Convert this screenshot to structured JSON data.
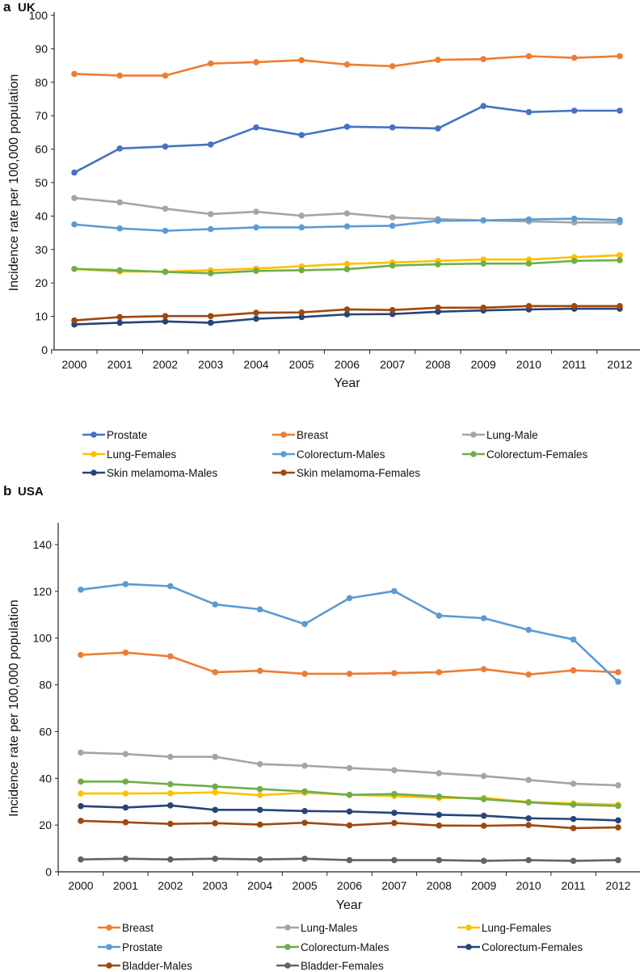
{
  "chart_data": [
    {
      "type": "line",
      "panel_letter": "a",
      "title": "UK",
      "xlabel": "Year",
      "ylabel": "Incidence rate per 100,000 population",
      "ylim": [
        0,
        100
      ],
      "yticks": [
        0,
        10,
        20,
        30,
        40,
        50,
        60,
        70,
        80,
        90,
        100
      ],
      "x": [
        "2000",
        "2001",
        "2002",
        "2003",
        "2004",
        "2005",
        "2006",
        "2007",
        "2008",
        "2009",
        "2010",
        "2011",
        "2012"
      ],
      "grid": false,
      "legend_position": "bottom",
      "series": [
        {
          "name": "Prostate",
          "color": "#4472C4",
          "values": [
            53,
            60.2,
            60.8,
            61.4,
            66.5,
            64.2,
            66.7,
            66.5,
            66.2,
            72.9,
            71.1,
            71.5,
            71.5
          ]
        },
        {
          "name": "Breast",
          "color": "#ED7D31",
          "values": [
            82.5,
            82,
            82,
            85.6,
            86,
            86.6,
            85.3,
            84.8,
            86.7,
            86.9,
            87.8,
            87.3,
            87.8
          ]
        },
        {
          "name": "Lung-Male",
          "color": "#A5A5A5",
          "values": [
            45.4,
            44.1,
            42.2,
            40.6,
            41.3,
            40.1,
            40.8,
            39.6,
            39.1,
            38.7,
            38.4,
            38.1,
            38.1
          ]
        },
        {
          "name": "Lung-Females",
          "color": "#FFC000",
          "values": [
            24.2,
            23.4,
            23.4,
            23.8,
            24.3,
            25,
            25.7,
            26.1,
            26.6,
            27,
            27,
            27.7,
            28.3
          ]
        },
        {
          "name": "Colorectum-Males",
          "color": "#5B9BD5",
          "values": [
            37.5,
            36.3,
            35.6,
            36.1,
            36.6,
            36.6,
            36.9,
            37.1,
            38.6,
            38.7,
            39,
            39.2,
            38.8
          ]
        },
        {
          "name": "Colorectum-Females",
          "color": "#70AD47",
          "values": [
            24.2,
            23.8,
            23.3,
            22.9,
            23.6,
            23.8,
            24.1,
            25.2,
            25.6,
            25.8,
            25.8,
            26.6,
            26.8
          ]
        },
        {
          "name": "Skin melamoma-Males",
          "color": "#264478",
          "values": [
            7.6,
            8.1,
            8.5,
            8.1,
            9.3,
            9.8,
            10.6,
            10.7,
            11.4,
            11.8,
            12.1,
            12.3,
            12.3
          ]
        },
        {
          "name": "Skin melamoma-Females",
          "color": "#9E480E",
          "values": [
            8.8,
            9.8,
            10.1,
            10.1,
            11.1,
            11.2,
            12.1,
            11.9,
            12.6,
            12.6,
            13.1,
            13.1,
            13.1
          ]
        }
      ]
    },
    {
      "type": "line",
      "panel_letter": "b",
      "title": "USA",
      "xlabel": "Year",
      "ylabel": "Incidence rate per 100,000 population",
      "ylim": [
        0,
        140
      ],
      "yticks": [
        0,
        20,
        40,
        60,
        80,
        100,
        120,
        140
      ],
      "x": [
        "2000",
        "2001",
        "2002",
        "2003",
        "2004",
        "2005",
        "2006",
        "2007",
        "2008",
        "2009",
        "2010",
        "2011",
        "2012"
      ],
      "grid": false,
      "legend_position": "bottom",
      "series": [
        {
          "name": "Breast",
          "color": "#ED7D31",
          "values": [
            92.8,
            93.8,
            92.2,
            85.4,
            86,
            84.7,
            84.7,
            85,
            85.4,
            86.7,
            84.4,
            86.2,
            85.4
          ]
        },
        {
          "name": "Lung-Males",
          "color": "#A5A5A5",
          "values": [
            51,
            50.4,
            49.2,
            49.2,
            46.1,
            45.4,
            44.4,
            43.5,
            42.2,
            41,
            39.3,
            37.7,
            37
          ]
        },
        {
          "name": "Lung-Females",
          "color": "#FFC000",
          "values": [
            33.5,
            33.5,
            33.6,
            34,
            32.8,
            33.8,
            33,
            32.4,
            31.6,
            31.6,
            29.9,
            29.3,
            28.7
          ]
        },
        {
          "name": "Prostate",
          "color": "#5B9BD5",
          "values": [
            120.7,
            123.1,
            122.2,
            114.4,
            112.3,
            106,
            117.1,
            120.1,
            109.6,
            108.5,
            103.5,
            99.4,
            81.3
          ]
        },
        {
          "name": "Colorectum-Males",
          "color": "#70AD47",
          "values": [
            38.6,
            38.6,
            37.5,
            36.5,
            35.4,
            34.4,
            32.9,
            33.3,
            32.2,
            31.1,
            29.7,
            28.7,
            28.2
          ]
        },
        {
          "name": "Colorectum-Females",
          "color": "#264478",
          "values": [
            28.1,
            27.5,
            28.4,
            26.5,
            26.5,
            26,
            25.8,
            25.2,
            24.4,
            24,
            22.9,
            22.6,
            22
          ]
        },
        {
          "name": "Bladder-Males",
          "color": "#9E480E",
          "values": [
            21.8,
            21.2,
            20.5,
            20.8,
            20.2,
            21,
            19.9,
            20.9,
            19.8,
            19.7,
            20,
            18.7,
            19
          ]
        },
        {
          "name": "Bladder-Females",
          "color": "#636363",
          "values": [
            5.3,
            5.6,
            5.3,
            5.6,
            5.3,
            5.6,
            5,
            5,
            5,
            4.7,
            5,
            4.7,
            5
          ]
        }
      ]
    }
  ]
}
